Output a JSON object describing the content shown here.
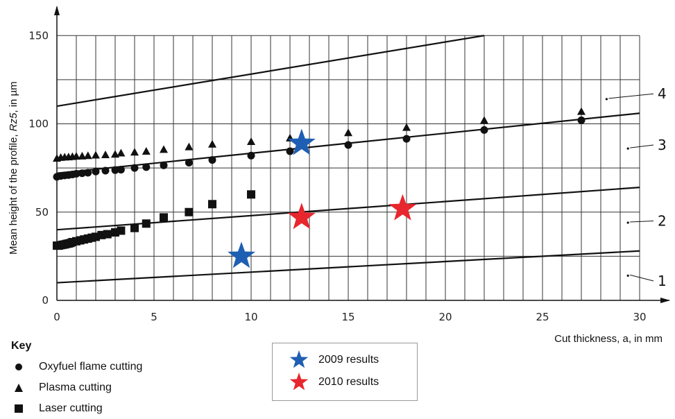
{
  "chart_data": {
    "type": "scatter",
    "xlabel": "Cut thickness, a, in mm",
    "ylabel_parts": [
      "Mean height of the profile, ",
      "Rz5",
      ", in µm"
    ],
    "xlim": [
      0,
      31
    ],
    "ylim": [
      0,
      150
    ],
    "x_ticks": [
      0,
      5,
      10,
      15,
      20,
      25,
      30
    ],
    "y_ticks": [
      0,
      50,
      100,
      150
    ],
    "grid": true,
    "zone_lines": [
      {
        "label": "1",
        "x": [
          0,
          30
        ],
        "y": [
          10,
          28
        ]
      },
      {
        "label": "2",
        "x": [
          0,
          30
        ],
        "y": [
          40,
          64
        ]
      },
      {
        "label": "3",
        "x": [
          0,
          30
        ],
        "y": [
          72,
          106
        ]
      },
      {
        "label": "4",
        "x": [
          0,
          22
        ],
        "y": [
          110,
          150
        ]
      }
    ],
    "series": [
      {
        "name": "Oxyfuel flame cutting",
        "marker": "circle",
        "x": [
          0,
          0.2,
          0.4,
          0.6,
          0.8,
          1,
          1.3,
          1.6,
          2,
          2.5,
          3,
          3.3,
          4,
          4.6,
          5.5,
          6.8,
          8,
          10,
          12,
          15,
          18,
          22,
          27
        ],
        "y": [
          70,
          70.5,
          70.8,
          71,
          71.3,
          71.7,
          72,
          72.3,
          73,
          73.5,
          73.8,
          74,
          75,
          75.5,
          76.5,
          78,
          79.5,
          82,
          84.5,
          88,
          91.5,
          96.5,
          102
        ]
      },
      {
        "name": "Plasma cutting",
        "marker": "triangle",
        "x": [
          0,
          0.2,
          0.4,
          0.6,
          0.8,
          1,
          1.3,
          1.6,
          2,
          2.5,
          3,
          3.3,
          4,
          4.6,
          5.5,
          6.8,
          8,
          10,
          12,
          15,
          18,
          22,
          27
        ],
        "y": [
          80.5,
          81,
          81.2,
          81.3,
          81.5,
          81.7,
          81.8,
          82,
          82.3,
          82.5,
          82.8,
          83.5,
          84,
          84.5,
          85.5,
          87,
          88.5,
          90,
          92,
          95,
          98,
          102,
          107
        ]
      },
      {
        "name": "Laser cutting",
        "marker": "square",
        "x": [
          0,
          0.1,
          0.2,
          0.3,
          0.4,
          0.5,
          0.6,
          0.7,
          0.8,
          1,
          1.2,
          1.4,
          1.6,
          1.8,
          2,
          2.3,
          2.6,
          3,
          3.3,
          4,
          4.6,
          5.5,
          6.8,
          8,
          10
        ],
        "y": [
          31,
          31,
          31.3,
          31.5,
          31.7,
          32,
          32.2,
          32.5,
          33,
          33.5,
          34,
          34.5,
          35,
          35.5,
          36,
          37,
          37.5,
          38.5,
          39.5,
          41,
          43.5,
          47,
          50,
          54.5,
          60
        ]
      }
    ],
    "stars": [
      {
        "name": "2009 results",
        "color": "#1f5fb3",
        "points": [
          {
            "x": 12.6,
            "y": 89
          },
          {
            "x": 9.5,
            "y": 25
          }
        ]
      },
      {
        "name": "2010 results",
        "color": "#e8262e",
        "points": [
          {
            "x": 12.6,
            "y": 47
          },
          {
            "x": 17.8,
            "y": 52
          }
        ]
      }
    ]
  },
  "key": {
    "title": "Key",
    "items": [
      {
        "marker": "circle",
        "label": "Oxyfuel flame cutting"
      },
      {
        "marker": "triangle",
        "label": "Plasma cutting"
      },
      {
        "marker": "square",
        "label": "Laser cutting"
      }
    ]
  },
  "star_legend": {
    "items": [
      {
        "color": "#1f5fb3",
        "label": "2009 results"
      },
      {
        "color": "#e8262e",
        "label": "2010 results"
      }
    ]
  }
}
